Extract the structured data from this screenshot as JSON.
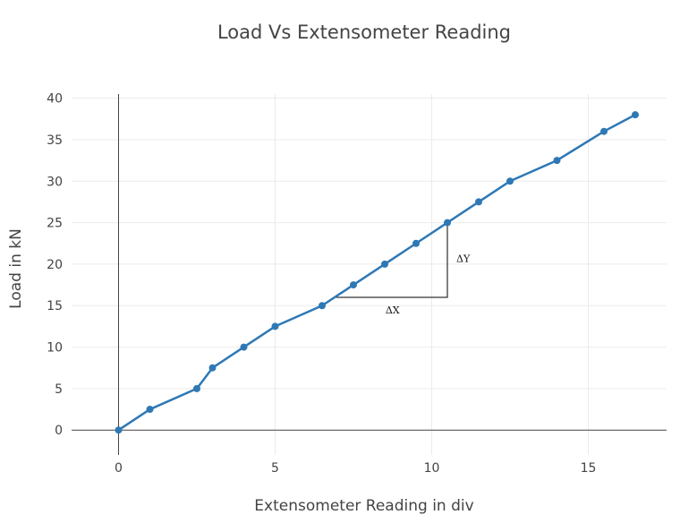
{
  "chart_data": {
    "type": "line",
    "title": "Load Vs Extensometer Reading",
    "xlabel": "Extensometer Reading in div",
    "ylabel": "Load in kN",
    "xlim": [
      -1.5,
      17.5
    ],
    "ylim": [
      -3,
      40.5
    ],
    "xticks": [
      0,
      5,
      10,
      15
    ],
    "yticks": [
      0,
      5,
      10,
      15,
      20,
      25,
      30,
      35,
      40
    ],
    "grid": true,
    "color": "#2e78b5",
    "series": [
      {
        "x": [
          0,
          1,
          2.5,
          3,
          4,
          5,
          6.5,
          7.5,
          8.5,
          9.5,
          10.5,
          11.5,
          12.5,
          14,
          15.5,
          16.5
        ],
        "y": [
          0,
          2.5,
          5,
          7.5,
          10,
          12.5,
          15,
          17.5,
          20,
          22.5,
          25,
          27.5,
          30,
          32.5,
          36,
          38
        ]
      }
    ],
    "annotations": [
      {
        "text": "ΔX"
      },
      {
        "text": "ΔY"
      }
    ]
  }
}
